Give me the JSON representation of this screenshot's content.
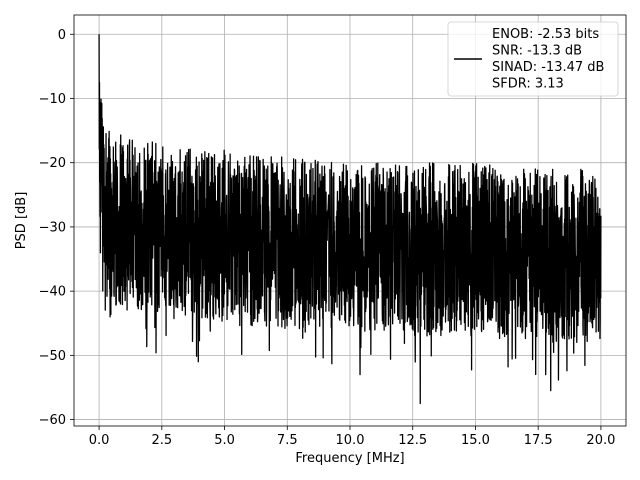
{
  "chart_data": {
    "type": "line",
    "title": "",
    "xlabel": "Frequency [MHz]",
    "ylabel": "PSD [dB]",
    "xlim": [
      -1.0,
      21.0
    ],
    "ylim": [
      -61.0,
      3.0
    ],
    "xticks": [
      0.0,
      2.5,
      5.0,
      7.5,
      10.0,
      12.5,
      15.0,
      17.5,
      20.0
    ],
    "xtick_labels": [
      "0.0",
      "2.5",
      "5.0",
      "7.5",
      "10.0",
      "12.5",
      "15.0",
      "17.5",
      "20.0"
    ],
    "yticks": [
      0,
      -10,
      -20,
      -30,
      -40,
      -50,
      -60
    ],
    "ytick_labels": [
      "0",
      "−10",
      "−20",
      "−30",
      "−40",
      "−50",
      "−60"
    ],
    "grid": true,
    "legend_position": "top-right",
    "series": [
      {
        "color": "#000000",
        "x_range": [
          0.0,
          20.0
        ],
        "peak_at_dc_db": 0,
        "envelope": {
          "x": [
            0.0,
            0.05,
            0.1,
            0.2,
            0.4,
            1.0,
            2.5,
            5.0,
            7.5,
            10.0,
            12.5,
            15.0,
            17.5,
            20.0
          ],
          "upper_db": [
            0,
            -6,
            -9,
            -12,
            -14,
            -16,
            -17,
            -18,
            -19,
            -20,
            -20,
            -20,
            -21,
            -21
          ],
          "lower_db": [
            -20,
            -38,
            -40,
            -41,
            -42,
            -43,
            -44,
            -45,
            -46,
            -46,
            -47,
            -47,
            -48,
            -48
          ]
        },
        "notable_minima": [
          {
            "x": 3.95,
            "y": -51
          },
          {
            "x": 10.4,
            "y": -53
          },
          {
            "x": 12.8,
            "y": -57.5
          },
          {
            "x": 18.0,
            "y": -55.5
          },
          {
            "x": 17.8,
            "y": -53
          }
        ]
      }
    ],
    "legend_lines": [
      "ENOB: -2.53 bits",
      "SNR: -13.3 dB",
      "SINAD: -13.47 dB",
      "SFDR: 3.13"
    ]
  }
}
